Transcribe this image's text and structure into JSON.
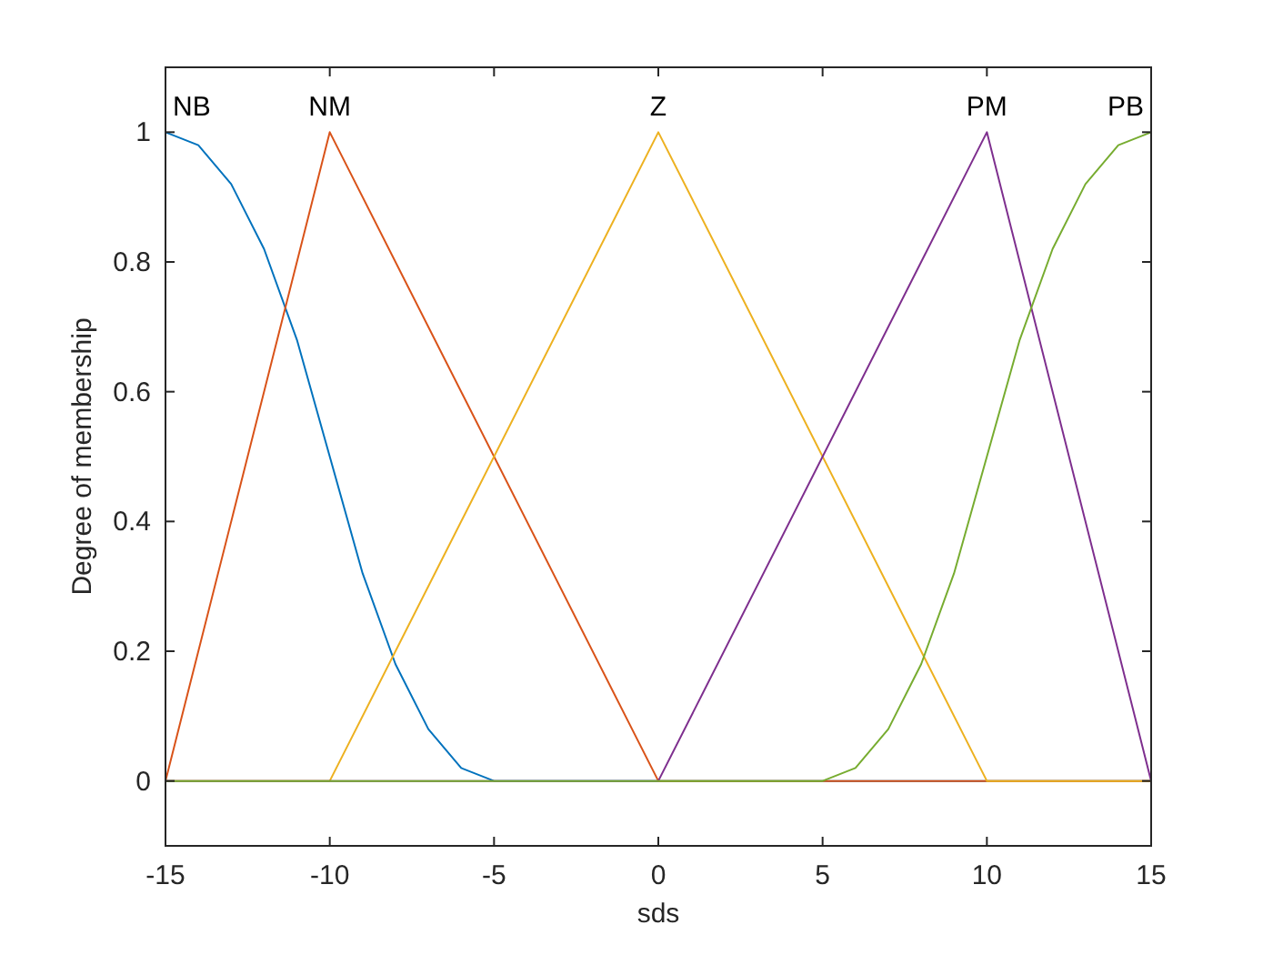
{
  "chart_data": {
    "type": "line",
    "xlabel": "sds",
    "ylabel": "Degree of membership",
    "xlim": [
      -15,
      15
    ],
    "ylim": [
      -0.1,
      1.1
    ],
    "xticks": [
      -15,
      -10,
      -5,
      0,
      5,
      10,
      15
    ],
    "yticks": [
      0,
      0.2,
      0.4,
      0.6,
      0.8,
      1
    ],
    "marker": "none",
    "line_style": "solid",
    "series": [
      {
        "name": "NB",
        "color": "#0072bd",
        "x": [
          -15,
          -14,
          -13,
          -12,
          -11,
          -10,
          -9,
          -8,
          -7,
          -6,
          -5,
          0,
          15
        ],
        "values": [
          1,
          0.98,
          0.92,
          0.82,
          0.68,
          0.5,
          0.32,
          0.18,
          0.08,
          0.02,
          0,
          0,
          0
        ]
      },
      {
        "name": "NM",
        "color": "#d95319",
        "x": [
          -15,
          -10,
          0,
          15
        ],
        "values": [
          0,
          1,
          0,
          0
        ]
      },
      {
        "name": "Z",
        "color": "#edb120",
        "x": [
          -15,
          -10,
          0,
          10,
          15
        ],
        "values": [
          0,
          0,
          1,
          0,
          0
        ]
      },
      {
        "name": "PM",
        "color": "#7e2f8e",
        "x": [
          -15,
          0,
          10,
          15
        ],
        "values": [
          0,
          0,
          1,
          0
        ]
      },
      {
        "name": "PB",
        "color": "#77ac30",
        "x": [
          -15,
          0,
          5,
          6,
          7,
          8,
          9,
          10,
          11,
          12,
          13,
          14,
          15
        ],
        "values": [
          0,
          0,
          0,
          0.02,
          0.08,
          0.18,
          0.32,
          0.5,
          0.68,
          0.82,
          0.92,
          0.98,
          1
        ]
      }
    ]
  }
}
